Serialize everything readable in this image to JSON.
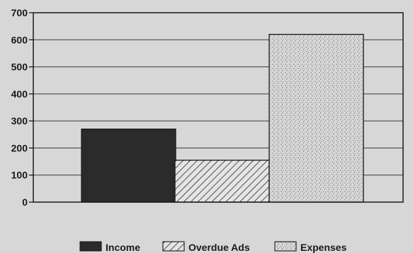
{
  "chart_data": {
    "type": "bar",
    "categories": [
      "Income",
      "Overdue Ads",
      "Expenses"
    ],
    "values": [
      270,
      155,
      620
    ],
    "ylim": [
      0,
      700
    ],
    "yticks": [
      0,
      100,
      200,
      300,
      400,
      500,
      600,
      700
    ],
    "ytick_labels": [
      "0",
      "100",
      "200",
      "300",
      "400",
      "500",
      "600",
      "700"
    ],
    "grid": true,
    "legend_position": "bottom",
    "legend": [
      {
        "label": "Income",
        "fill": "solid"
      },
      {
        "label": "Overdue Ads",
        "fill": "diagonal-hatch"
      },
      {
        "label": "Expenses",
        "fill": "stipple"
      }
    ],
    "colors": {
      "background": "#d7d7d7",
      "axis": "#1a1a1a",
      "income": "#2b2b2b",
      "hatch_bg": "#e4e4e4",
      "stipple_bg": "#dcdcdc"
    }
  }
}
